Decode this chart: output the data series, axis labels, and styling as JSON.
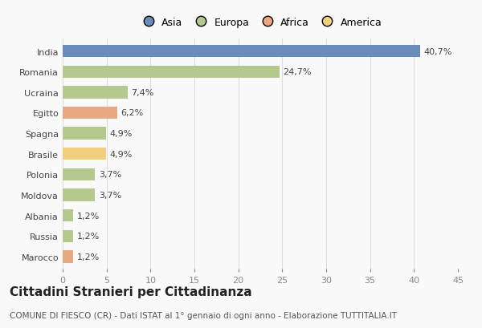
{
  "categories": [
    "India",
    "Romania",
    "Ucraina",
    "Egitto",
    "Spagna",
    "Brasile",
    "Polonia",
    "Moldova",
    "Albania",
    "Russia",
    "Marocco"
  ],
  "values": [
    40.7,
    24.7,
    7.4,
    6.2,
    4.9,
    4.9,
    3.7,
    3.7,
    1.2,
    1.2,
    1.2
  ],
  "labels": [
    "40,7%",
    "24,7%",
    "7,4%",
    "6,2%",
    "4,9%",
    "4,9%",
    "3,7%",
    "3,7%",
    "1,2%",
    "1,2%",
    "1,2%"
  ],
  "colors": [
    "#6b8cba",
    "#b5c98e",
    "#b5c98e",
    "#e8a882",
    "#b5c98e",
    "#f0d080",
    "#b5c98e",
    "#b5c98e",
    "#b5c98e",
    "#b5c98e",
    "#e8a882"
  ],
  "legend_labels": [
    "Asia",
    "Europa",
    "Africa",
    "America"
  ],
  "legend_colors": [
    "#6b8cba",
    "#b5c98e",
    "#e8a882",
    "#f0d080"
  ],
  "title": "Cittadini Stranieri per Cittadinanza",
  "subtitle": "COMUNE DI FIESCO (CR) - Dati ISTAT al 1° gennaio di ogni anno - Elaborazione TUTTITALIA.IT",
  "xlim": [
    0,
    45
  ],
  "xticks": [
    0,
    5,
    10,
    15,
    20,
    25,
    30,
    35,
    40,
    45
  ],
  "background_color": "#f9f9f9",
  "grid_color": "#dddddd",
  "bar_height": 0.6,
  "title_fontsize": 11,
  "subtitle_fontsize": 7.5,
  "tick_fontsize": 8,
  "label_fontsize": 8
}
